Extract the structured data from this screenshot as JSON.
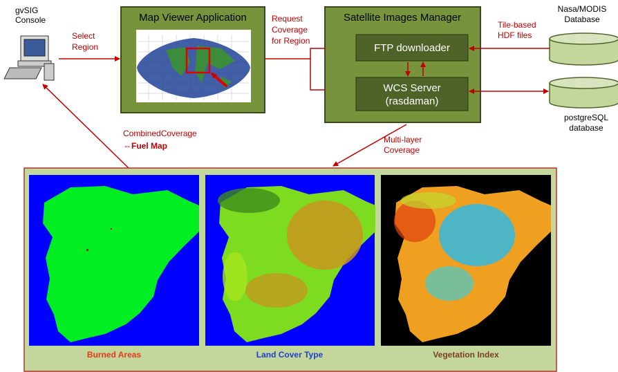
{
  "console": {
    "lines": [
      "gvSIG",
      "Console"
    ]
  },
  "select_label": {
    "lines": [
      "Select",
      "Region"
    ]
  },
  "map_viewer": {
    "title": "Map Viewer Application"
  },
  "request_label": {
    "lines": [
      "Request",
      "Coverage",
      "for Region"
    ]
  },
  "satellite_manager": {
    "title": "Satellite Images Manager",
    "ftp": "FTP downloader",
    "wcs": {
      "lines": [
        "WCS Server",
        "(rasdaman)"
      ]
    }
  },
  "tile_label": {
    "lines": [
      "Tile-based",
      "HDF files"
    ]
  },
  "nasa_db": {
    "lines": [
      "Nasa/MODIS",
      "Database"
    ]
  },
  "postgres_db": {
    "lines": [
      "postgreSQL",
      "database"
    ]
  },
  "combined_label": {
    "text": "CombinedCoverage",
    "symbol": "⇔",
    "emphasis": "Fuel Map"
  },
  "multilayer_label": {
    "lines": [
      "Multi-layer",
      "Coverage"
    ]
  },
  "images": [
    {
      "caption": "Burned Areas"
    },
    {
      "caption": "Land Cover Type"
    },
    {
      "caption": "Vegetation Index"
    }
  ]
}
